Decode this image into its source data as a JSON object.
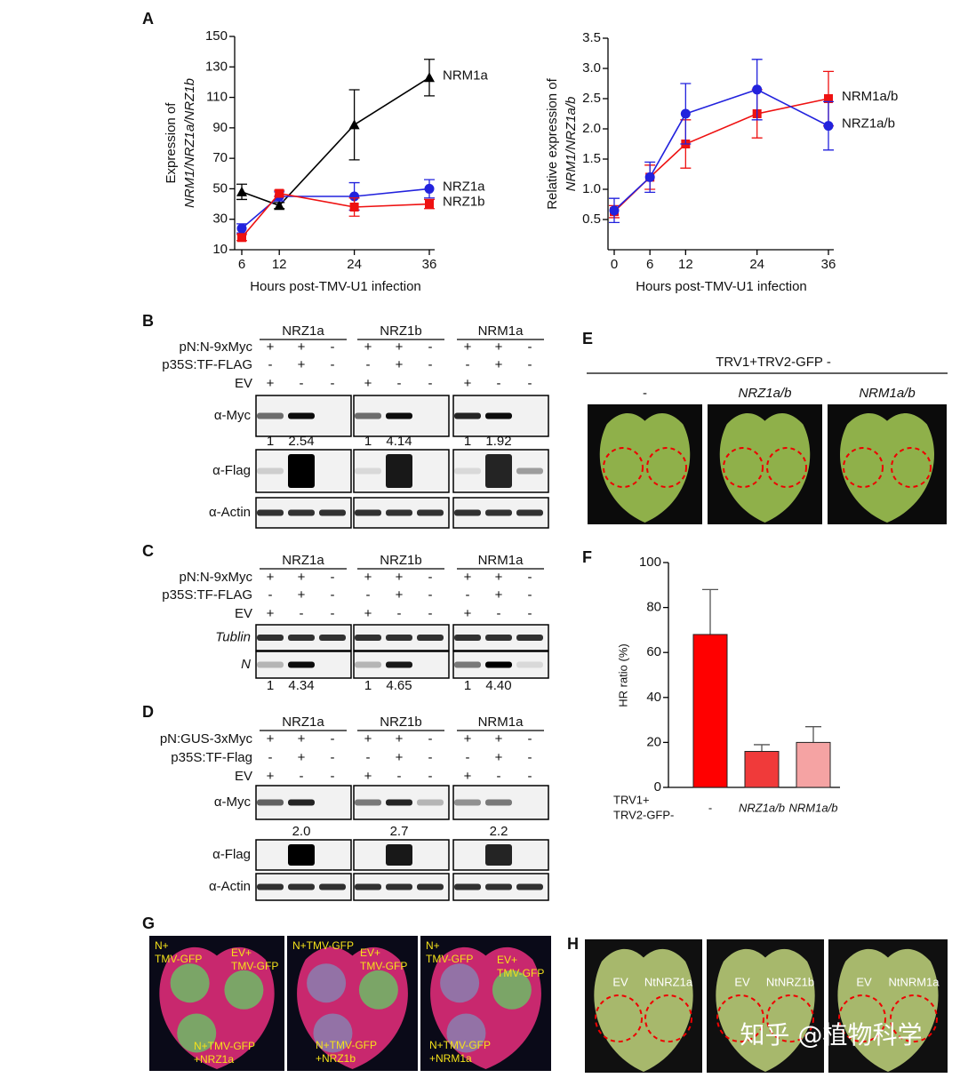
{
  "panel_labels": [
    "A",
    "B",
    "C",
    "D",
    "E",
    "F",
    "G",
    "H"
  ],
  "chart_data": [
    {
      "type": "line",
      "ylabel": [
        "Expression of",
        "NRM1/NRZ1a/NRZ1b"
      ],
      "xlabel": "Hours post-TMV-U1 infection",
      "x": [
        6,
        12,
        24,
        36
      ],
      "xlim": [
        6,
        36
      ],
      "xticks": [
        6,
        12,
        24,
        36
      ],
      "ylim": [
        10,
        150
      ],
      "yticks": [
        10,
        30,
        50,
        70,
        90,
        110,
        130,
        150
      ],
      "series": [
        {
          "name": "NRM1a",
          "color": "#000000",
          "marker": "triangle",
          "values": [
            48,
            39,
            92,
            123
          ],
          "errors": [
            5,
            2,
            23,
            12
          ]
        },
        {
          "name": "NRZ1a",
          "color": "#2222dd",
          "marker": "circle",
          "values": [
            24,
            45,
            45,
            50
          ],
          "errors": [
            3,
            3,
            9,
            6
          ]
        },
        {
          "name": "NRZ1b",
          "color": "#ee1111",
          "marker": "square",
          "values": [
            18,
            47,
            38,
            40
          ],
          "errors": [
            2,
            2,
            6,
            3
          ]
        }
      ]
    },
    {
      "type": "line",
      "ylabel": [
        "Relative expression of",
        "NRM1/NRZ1a/b"
      ],
      "xlabel": "Hours post-TMV-U1 infection",
      "x": [
        0,
        6,
        12,
        24,
        36
      ],
      "xlim": [
        0,
        36
      ],
      "xticks": [
        0,
        6,
        12,
        24,
        36
      ],
      "ylim": [
        0,
        3.5
      ],
      "yticks": [
        0.5,
        {
          "value": 1,
          "label": "1.0"
        },
        1.5,
        {
          "value": 2,
          "label": "2.0"
        },
        2.5,
        {
          "value": 3,
          "label": "3.0"
        },
        3.5
      ],
      "series": [
        {
          "name": "NRM1a/b",
          "color": "#ee1111",
          "marker": "square",
          "values": [
            0.63,
            1.2,
            1.75,
            2.25,
            2.5
          ],
          "errors": [
            0.1,
            0.2,
            0.4,
            0.4,
            0.45
          ]
        },
        {
          "name": "NRZ1a/b",
          "color": "#2222dd",
          "marker": "circle",
          "values": [
            0.65,
            1.2,
            2.25,
            2.65,
            2.05
          ],
          "errors": [
            0.2,
            0.25,
            0.5,
            0.5,
            0.4
          ]
        }
      ]
    },
    {
      "type": "bar",
      "ylabel": "HR ratio (%)",
      "x_prefix": [
        "TRV1+",
        "TRV2-GFP-"
      ],
      "categories": [
        "-",
        "NRZ1a/b",
        "NRM1a/b"
      ],
      "values": [
        68,
        16,
        20
      ],
      "errors": [
        20,
        3,
        7
      ],
      "colors": [
        "#ff0000",
        "#f03a3a",
        "#f5a3a3"
      ],
      "ylim": [
        0,
        100
      ],
      "yticks": [
        0,
        20,
        40,
        60,
        80,
        100
      ]
    }
  ],
  "blot_panels": [
    {
      "groups": [
        "NRZ1a",
        "NRZ1b",
        "NRM1a"
      ],
      "conditions": [
        {
          "label": "pN:N-9xMyc",
          "signs": [
            "+",
            "+",
            "-"
          ]
        },
        {
          "label": "p35S:TF-FLAG",
          "signs": [
            "-",
            "+",
            "-"
          ]
        },
        {
          "label": "EV",
          "signs": [
            "+",
            "-",
            "-"
          ]
        }
      ],
      "blots": [
        {
          "label": "α-Myc",
          "quant": [
            [
              "1",
              "2.54"
            ],
            [
              "1",
              "4.14"
            ],
            [
              "1",
              "1.92"
            ]
          ]
        },
        {
          "label": "α-Flag"
        },
        {
          "label": "α-Actin"
        }
      ]
    },
    {
      "groups": [
        "NRZ1a",
        "NRZ1b",
        "NRM1a"
      ],
      "conditions": [
        {
          "label": "pN:N-9xMyc",
          "signs": [
            "+",
            "+",
            "-"
          ]
        },
        {
          "label": "p35S:TF-FLAG",
          "signs": [
            "-",
            "+",
            "-"
          ]
        },
        {
          "label": "EV",
          "signs": [
            "+",
            "-",
            "-"
          ]
        }
      ],
      "blots": [
        {
          "label": "Tublin"
        },
        {
          "label": "N",
          "quant": [
            [
              "1",
              "4.34"
            ],
            [
              "1",
              "4.65"
            ],
            [
              "1",
              "4.40"
            ]
          ]
        }
      ]
    },
    {
      "groups": [
        "NRZ1a",
        "NRZ1b",
        "NRM1a"
      ],
      "conditions": [
        {
          "label": "pN:GUS-3xMyc",
          "signs": [
            "+",
            "+",
            "-"
          ]
        },
        {
          "label": "p35S:TF-Flag",
          "signs": [
            "-",
            "+",
            "-"
          ]
        },
        {
          "label": "EV",
          "signs": [
            "+",
            "-",
            "-"
          ]
        }
      ],
      "blots": [
        {
          "label": "α-Myc",
          "quant": [
            [
              "2.0"
            ],
            [
              "2.7"
            ],
            [
              "2.2"
            ]
          ]
        },
        {
          "label": "α-Flag"
        },
        {
          "label": "α-Actin"
        }
      ]
    }
  ],
  "panel_E": {
    "title": "TRV1+TRV2-GFP -",
    "labels": [
      "-",
      "NRZ1a/b",
      "NRM1a/b"
    ]
  },
  "panel_G": {
    "images": [
      [
        [
          "N+",
          "TMV-GFP"
        ],
        [
          "EV+",
          "TMV-GFP"
        ],
        [
          "N+TMV-GFP",
          "+NRZ1a"
        ]
      ],
      [
        [
          "N+TMV-GFP"
        ],
        [
          "EV+",
          "TMV-GFP"
        ],
        [
          "N+TMV-GFP",
          "+NRZ1b"
        ]
      ],
      [
        [
          "N+",
          "TMV-GFP"
        ],
        [
          "EV+",
          "TMV-GFP"
        ],
        [
          "N+TMV-GFP",
          "+NRM1a"
        ]
      ]
    ]
  },
  "panel_H": {
    "images": [
      [
        "EV",
        "NtNRZ1a"
      ],
      [
        "EV",
        "NtNRZ1b"
      ],
      [
        "EV",
        "NtNRM1a"
      ]
    ]
  },
  "watermark": "知乎 @植物科学"
}
